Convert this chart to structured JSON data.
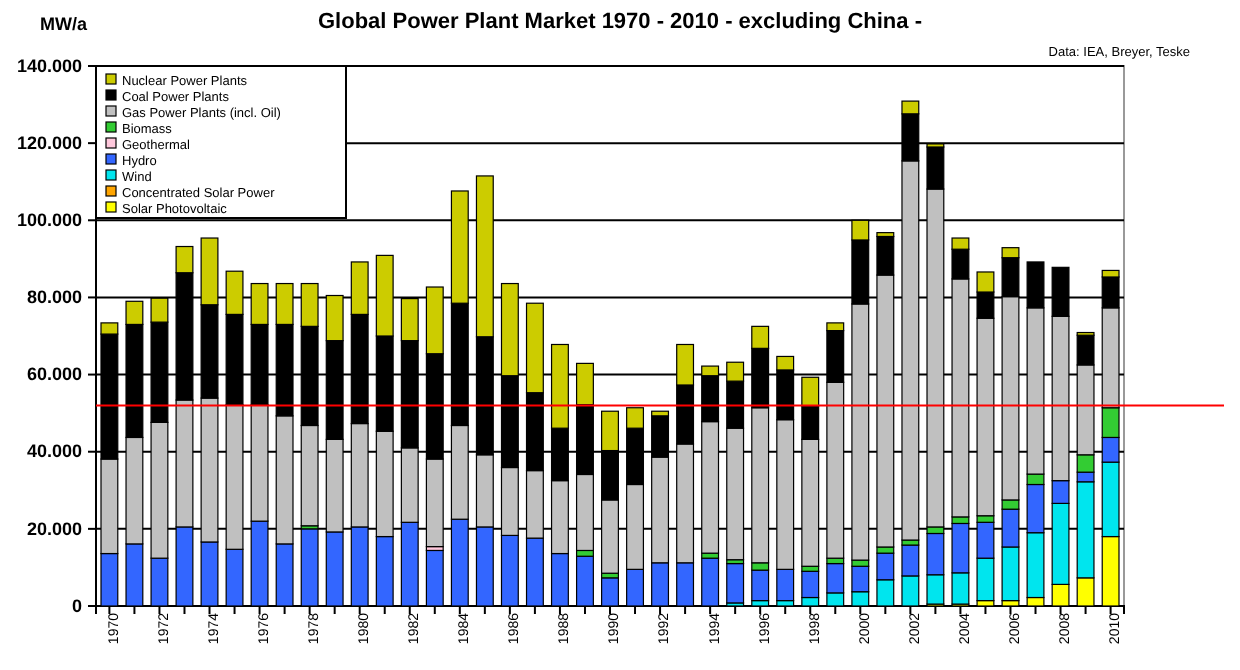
{
  "chart_data": {
    "type": "bar",
    "stacked": true,
    "title": "Global Power Plant Market 1970 - 2010  - excluding China -",
    "ylabel": "MW/a",
    "annotations": [
      "Data: IEA, Breyer, Teske"
    ],
    "categories": [
      "1970",
      null,
      "1972",
      null,
      "1974",
      null,
      "1976",
      null,
      "1978",
      null,
      "1980",
      null,
      "1982",
      null,
      "1984",
      null,
      "1986",
      null,
      "1988",
      null,
      "1990",
      null,
      "1992",
      null,
      "1994",
      null,
      "1996",
      null,
      "1998",
      null,
      "2000",
      null,
      "2002",
      null,
      "2004",
      null,
      "2006",
      null,
      "2008",
      null,
      "2010"
    ],
    "ylim": [
      0,
      140000
    ],
    "yticks": [
      0,
      {
        "value": 20000,
        "label": "20.000"
      },
      {
        "value": 40000,
        "label": "40.000"
      },
      {
        "value": 60000,
        "label": "60.000"
      },
      {
        "value": 80000,
        "label": "80.000"
      },
      {
        "value": 100000,
        "label": "100.000"
      },
      {
        "value": 120000,
        "label": "120.000"
      },
      {
        "value": 140000,
        "label": "140.000"
      }
    ],
    "grid": "y",
    "legend": "top left",
    "ref_lines": [
      {
        "axis": "y",
        "value": 52000,
        "color": "#ff0000"
      }
    ],
    "series": [
      {
        "name": "Solar Photovoltaic",
        "color": "#ffff00",
        "values": [
          0,
          0,
          0,
          0,
          0,
          0,
          0,
          0,
          0,
          0,
          0,
          0,
          0,
          0,
          0,
          0,
          0,
          0,
          0,
          0,
          0,
          0,
          0,
          0,
          0,
          0,
          0,
          0,
          0,
          0,
          0,
          0,
          0,
          500,
          500,
          1400,
          1400,
          2200,
          5600,
          7300,
          18000
        ]
      },
      {
        "name": "Concentrated Solar Power",
        "color": "#ffa500",
        "values": [
          0,
          0,
          0,
          0,
          0,
          0,
          0,
          0,
          0,
          0,
          0,
          0,
          0,
          0,
          0,
          0,
          0,
          0,
          0,
          0,
          0,
          0,
          0,
          0,
          0,
          0,
          0,
          0,
          0,
          0,
          0,
          0,
          0,
          0,
          0,
          0,
          0,
          0,
          0,
          0,
          0
        ]
      },
      {
        "name": "Wind",
        "color": "#00e5ee",
        "values": [
          0,
          0,
          0,
          0,
          0,
          0,
          0,
          0,
          0,
          0,
          0,
          0,
          0,
          0,
          0,
          0,
          0,
          0,
          0,
          0,
          0,
          0,
          0,
          0,
          0,
          800,
          1400,
          1400,
          2200,
          3400,
          3700,
          6800,
          7800,
          7600,
          8100,
          11000,
          13900,
          16800,
          21000,
          24900,
          19300
        ]
      },
      {
        "name": "Hydro",
        "color": "#3366ff",
        "values": [
          13600,
          16100,
          12400,
          20500,
          16600,
          14700,
          22000,
          16100,
          20000,
          19200,
          20500,
          18000,
          21700,
          14400,
          22500,
          20500,
          18300,
          17600,
          13600,
          12900,
          7300,
          9500,
          11200,
          11200,
          12400,
          10200,
          7900,
          8100,
          6800,
          7600,
          6600,
          6900,
          8000,
          10700,
          12800,
          9300,
          9800,
          12500,
          5900,
          2500,
          6400
        ]
      },
      {
        "name": "Geothermal",
        "color": "#ffc8dc",
        "values": [
          0,
          0,
          0,
          0,
          0,
          0,
          0,
          0,
          0,
          0,
          0,
          0,
          0,
          1000,
          0,
          0,
          0,
          0,
          0,
          0,
          0,
          0,
          0,
          0,
          0,
          0,
          0,
          0,
          0,
          0,
          0,
          0,
          0,
          0,
          0,
          0,
          0,
          0,
          0,
          0,
          0
        ]
      },
      {
        "name": "Biomass",
        "color": "#33cc33",
        "values": [
          0,
          0,
          0,
          0,
          0,
          0,
          0,
          0,
          800,
          0,
          0,
          0,
          0,
          0,
          0,
          0,
          0,
          0,
          0,
          1500,
          1200,
          0,
          0,
          0,
          1300,
          1000,
          1900,
          0,
          1300,
          1400,
          1600,
          1600,
          1300,
          1700,
          1700,
          1700,
          2400,
          2700,
          0,
          4500,
          7700
        ]
      },
      {
        "name": "Gas Power Plants (incl. Oil)",
        "color": "#c0c0c0",
        "values": [
          24500,
          27600,
          35200,
          32900,
          37300,
          37500,
          30200,
          33200,
          26000,
          24000,
          26800,
          27300,
          19300,
          22700,
          24300,
          18700,
          17600,
          17500,
          18900,
          19700,
          19000,
          22000,
          27400,
          30800,
          34100,
          34100,
          40200,
          38800,
          32900,
          45600,
          66400,
          70500,
          98300,
          87600,
          61700,
          51200,
          52700,
          43100,
          42600,
          23300,
          25900
        ]
      },
      {
        "name": "Coal Power Plants",
        "color": "#000000",
        "values": [
          32400,
          29300,
          26000,
          33000,
          24200,
          23400,
          20800,
          23700,
          25700,
          25600,
          28300,
          24700,
          27800,
          27300,
          31700,
          30600,
          23800,
          20200,
          13600,
          18100,
          12800,
          14600,
          10700,
          15300,
          11900,
          12200,
          15400,
          12900,
          8700,
          13400,
          16600,
          10000,
          12200,
          10900,
          7700,
          6800,
          10100,
          11900,
          12700,
          7700,
          8000
        ]
      },
      {
        "name": "Nuclear Power Plants",
        "color": "#cccc00",
        "values": [
          2900,
          6000,
          6200,
          6800,
          17300,
          11200,
          10600,
          10600,
          11100,
          11700,
          13600,
          20900,
          10900,
          17300,
          29100,
          41700,
          23900,
          23200,
          21700,
          10700,
          10200,
          5300,
          1200,
          10500,
          2500,
          4900,
          5700,
          3500,
          7400,
          2000,
          5100,
          1000,
          3300,
          800,
          2900,
          5200,
          2600,
          0,
          0,
          700,
          1700
        ]
      }
    ]
  }
}
